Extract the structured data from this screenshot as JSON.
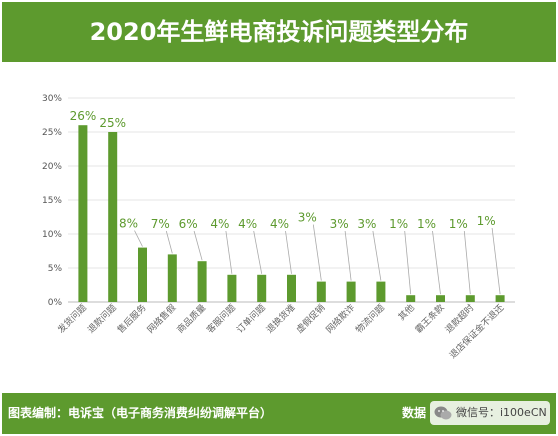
{
  "title": "2020年生鲜电商投诉问题类型分布",
  "footer": {
    "source_label": "图表编制：电诉宝（电子商务消费纠纷调解平台）",
    "data_label": "数据",
    "wechat_text": "微信号：i100eCN"
  },
  "colors": {
    "bar": "#5d9a2e",
    "title_bg": "#5d9a2e",
    "footer_bg": "#5d9a2e",
    "label": "#5d9a2e"
  },
  "chart_data": {
    "type": "bar",
    "categories": [
      "发货问题",
      "退款问题",
      "售后服务",
      "网络售假",
      "商品质量",
      "客服问题",
      "订单问题",
      "退换货难",
      "虚假促销",
      "网络欺诈",
      "物流问题",
      "其他",
      "霸王条款",
      "退款超时",
      "退店保证金不退还"
    ],
    "values": [
      26,
      25,
      8,
      7,
      6,
      4,
      4,
      4,
      3,
      3,
      3,
      1,
      1,
      1,
      1
    ],
    "data_labels": [
      "26%",
      "25%",
      "8%",
      "7%",
      "6%",
      "4%",
      "4%",
      "4%",
      "3%",
      "3%",
      "3%",
      "1%",
      "1%",
      "1%",
      "1%"
    ],
    "y_ticks": [
      "0%",
      "5%",
      "10%",
      "15%",
      "20%",
      "25%",
      "30%"
    ],
    "ylim": [
      0,
      30
    ],
    "grid": true,
    "legend": "none"
  }
}
